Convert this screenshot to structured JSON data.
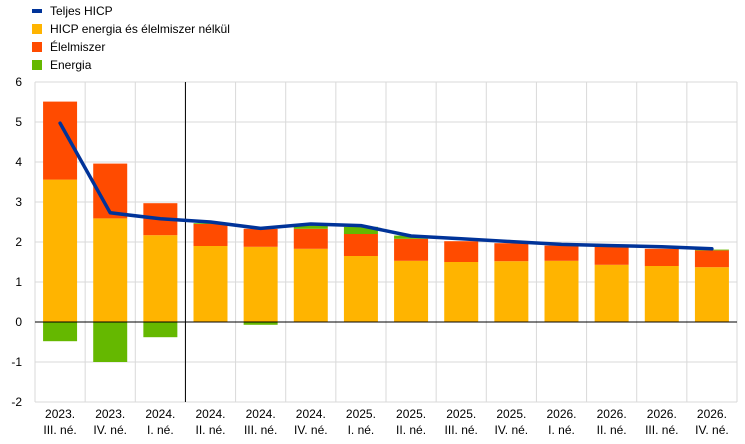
{
  "chart_data": {
    "type": "bar",
    "title": "",
    "xlabel": "",
    "ylabel": "",
    "ylim": [
      -2,
      6
    ],
    "yticks": [
      -2,
      -1,
      0,
      1,
      2,
      3,
      4,
      5,
      6
    ],
    "grid": true,
    "legend_position": "top-left",
    "categories": [
      [
        "2023.",
        "III. né."
      ],
      [
        "2023.",
        "IV. né."
      ],
      [
        "2024.",
        "I. né."
      ],
      [
        "2024.",
        "II. né."
      ],
      [
        "2024.",
        "III. né."
      ],
      [
        "2024.",
        "IV. né."
      ],
      [
        "2025.",
        "I. né."
      ],
      [
        "2025.",
        "II. né."
      ],
      [
        "2025.",
        "III. né."
      ],
      [
        "2025.",
        "IV. né."
      ],
      [
        "2026.",
        "I. né."
      ],
      [
        "2026.",
        "II. né."
      ],
      [
        "2026.",
        "III. né."
      ],
      [
        "2026.",
        "IV. né."
      ]
    ],
    "series": [
      {
        "name": "Teljes HICP",
        "type": "line",
        "color": "#003399",
        "values": [
          4.97,
          2.73,
          2.58,
          2.5,
          2.34,
          2.45,
          2.41,
          2.15,
          2.08,
          2.01,
          1.94,
          1.91,
          1.88,
          1.83
        ]
      },
      {
        "name": "HICP energia és élelmiszer nélkül",
        "type": "bar",
        "color": "#ffb400",
        "values": [
          3.56,
          2.59,
          2.17,
          1.9,
          1.88,
          1.83,
          1.65,
          1.53,
          1.5,
          1.52,
          1.53,
          1.43,
          1.4,
          1.37
        ]
      },
      {
        "name": "Élelmiszer",
        "type": "bar",
        "color": "#ff4b00",
        "values": [
          1.95,
          1.37,
          0.8,
          0.55,
          0.45,
          0.5,
          0.55,
          0.55,
          0.52,
          0.45,
          0.38,
          0.45,
          0.43,
          0.42
        ]
      },
      {
        "name": "Energia",
        "type": "bar",
        "color": "#65b800",
        "values": [
          -0.48,
          -1.0,
          -0.38,
          0.02,
          -0.07,
          0.08,
          0.18,
          0.08,
          0.0,
          0.0,
          0.0,
          0.0,
          0.0,
          0.02
        ]
      }
    ],
    "vertical_divider_after_index": 2
  }
}
